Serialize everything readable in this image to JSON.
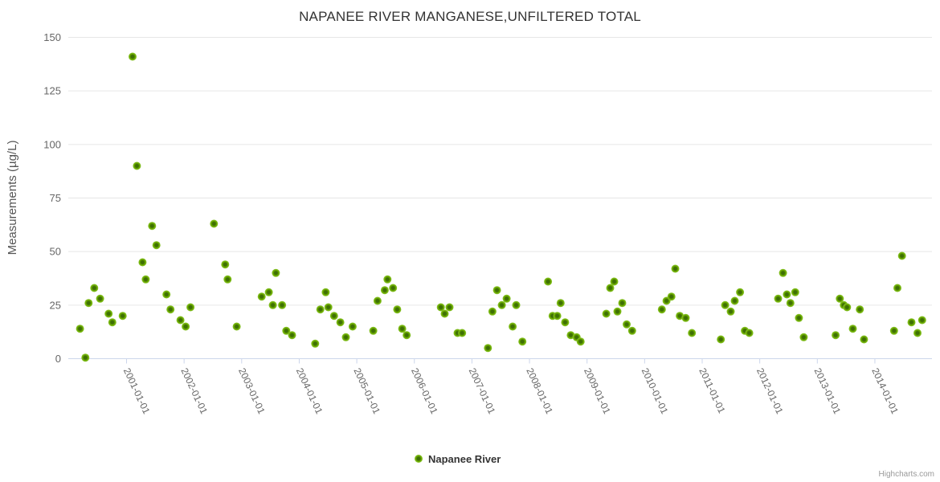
{
  "title": "NAPANEE RIVER MANGANESE,UNFILTERED TOTAL",
  "credits": "Highcharts.com",
  "colors": {
    "marker_core": "#3e7004",
    "marker_mid": "#6fae00",
    "marker_edge": "#8cc636",
    "grid_line": "#e6e6e6",
    "axis_line": "#ccd6eb",
    "tick_label": "#666666",
    "title_text": "#333333",
    "legend_text": "#333333",
    "credits_text": "#999999"
  },
  "chart_data": {
    "type": "scatter",
    "title": "NAPANEE RIVER MANGANESE,UNFILTERED TOTAL",
    "xlabel": "",
    "ylabel": "Measurements (µg/L)",
    "ylim": [
      0,
      150
    ],
    "y_ticks": [
      0,
      25,
      50,
      75,
      100,
      125,
      150
    ],
    "x_ticks": [
      "2001-01-01",
      "2002-01-01",
      "2003-01-01",
      "2004-01-01",
      "2005-01-01",
      "2006-01-01",
      "2007-01-01",
      "2008-01-01",
      "2009-01-01",
      "2010-01-01",
      "2011-01-01",
      "2012-01-01",
      "2013-01-01",
      "2014-01-01"
    ],
    "x_range": [
      "2000-01-01",
      "2015-01-01"
    ],
    "grid": "horizontal-only",
    "legend_position": "bottom-center",
    "x_label_rotation_deg": 65,
    "series": [
      {
        "name": "Napanee River",
        "points": [
          [
            "2000-03-10",
            14
          ],
          [
            "2000-04-14",
            0.5
          ],
          [
            "2000-05-04",
            26
          ],
          [
            "2000-06-09",
            33
          ],
          [
            "2000-07-16",
            28
          ],
          [
            "2000-09-09",
            21
          ],
          [
            "2000-10-02",
            17
          ],
          [
            "2000-12-07",
            20
          ],
          [
            "2001-02-09",
            141
          ],
          [
            "2001-03-06",
            90
          ],
          [
            "2001-04-11",
            45
          ],
          [
            "2001-05-01",
            37
          ],
          [
            "2001-06-11",
            62
          ],
          [
            "2001-07-08",
            53
          ],
          [
            "2001-09-11",
            30
          ],
          [
            "2001-10-06",
            23
          ],
          [
            "2001-12-08",
            18
          ],
          [
            "2002-01-11",
            15
          ],
          [
            "2002-02-11",
            24
          ],
          [
            "2002-07-08",
            63
          ],
          [
            "2002-09-18",
            44
          ],
          [
            "2002-10-03",
            37
          ],
          [
            "2002-11-30",
            15
          ],
          [
            "2003-05-06",
            29
          ],
          [
            "2003-06-21",
            31
          ],
          [
            "2003-07-16",
            25
          ],
          [
            "2003-08-05",
            40
          ],
          [
            "2003-09-14",
            25
          ],
          [
            "2003-10-10",
            13
          ],
          [
            "2003-11-16",
            11
          ],
          [
            "2004-04-11",
            7
          ],
          [
            "2004-05-13",
            23
          ],
          [
            "2004-06-17",
            31
          ],
          [
            "2004-07-03",
            24
          ],
          [
            "2004-08-09",
            20
          ],
          [
            "2004-09-18",
            17
          ],
          [
            "2004-10-23",
            10
          ],
          [
            "2004-12-05",
            15
          ],
          [
            "2005-04-14",
            13
          ],
          [
            "2005-05-11",
            27
          ],
          [
            "2005-06-26",
            32
          ],
          [
            "2005-07-13",
            37
          ],
          [
            "2005-08-18",
            33
          ],
          [
            "2005-09-14",
            23
          ],
          [
            "2005-10-15",
            14
          ],
          [
            "2005-11-13",
            11
          ],
          [
            "2006-06-17",
            24
          ],
          [
            "2006-07-11",
            21
          ],
          [
            "2006-08-11",
            24
          ],
          [
            "2006-10-01",
            12
          ],
          [
            "2006-10-30",
            12
          ],
          [
            "2007-04-11",
            5
          ],
          [
            "2007-05-09",
            22
          ],
          [
            "2007-06-08",
            32
          ],
          [
            "2007-07-08",
            25
          ],
          [
            "2007-08-08",
            28
          ],
          [
            "2007-09-16",
            15
          ],
          [
            "2007-10-08",
            25
          ],
          [
            "2007-11-17",
            8
          ],
          [
            "2008-04-27",
            36
          ],
          [
            "2008-05-26",
            20
          ],
          [
            "2008-06-25",
            20
          ],
          [
            "2008-07-16",
            26
          ],
          [
            "2008-08-14",
            17
          ],
          [
            "2008-09-19",
            11
          ],
          [
            "2008-10-26",
            10
          ],
          [
            "2008-11-21",
            8
          ],
          [
            "2009-05-01",
            21
          ],
          [
            "2009-05-26",
            33
          ],
          [
            "2009-06-21",
            36
          ],
          [
            "2009-07-11",
            22
          ],
          [
            "2009-08-11",
            26
          ],
          [
            "2009-09-09",
            16
          ],
          [
            "2009-10-13",
            13
          ],
          [
            "2010-04-19",
            23
          ],
          [
            "2010-05-18",
            27
          ],
          [
            "2010-06-19",
            29
          ],
          [
            "2010-07-13",
            42
          ],
          [
            "2010-08-11",
            20
          ],
          [
            "2010-09-18",
            19
          ],
          [
            "2010-10-27",
            12
          ],
          [
            "2011-04-28",
            9
          ],
          [
            "2011-05-25",
            25
          ],
          [
            "2011-06-30",
            22
          ],
          [
            "2011-07-25",
            27
          ],
          [
            "2011-08-28",
            31
          ],
          [
            "2011-09-28",
            13
          ],
          [
            "2011-10-26",
            12
          ],
          [
            "2012-04-26",
            28
          ],
          [
            "2012-05-27",
            40
          ],
          [
            "2012-06-21",
            30
          ],
          [
            "2012-07-13",
            26
          ],
          [
            "2012-08-13",
            31
          ],
          [
            "2012-09-06",
            19
          ],
          [
            "2012-10-06",
            10
          ],
          [
            "2013-04-26",
            11
          ],
          [
            "2013-05-22",
            28
          ],
          [
            "2013-06-17",
            25
          ],
          [
            "2013-07-07",
            24
          ],
          [
            "2013-08-13",
            14
          ],
          [
            "2013-09-27",
            23
          ],
          [
            "2013-10-23",
            9
          ],
          [
            "2014-05-01",
            13
          ],
          [
            "2014-05-22",
            33
          ],
          [
            "2014-06-21",
            48
          ],
          [
            "2014-08-20",
            17
          ],
          [
            "2014-09-28",
            12
          ],
          [
            "2014-10-27",
            18
          ]
        ]
      }
    ]
  }
}
